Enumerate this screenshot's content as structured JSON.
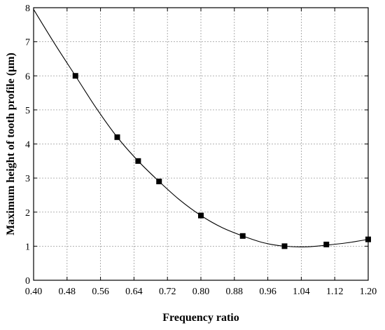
{
  "chart_data": {
    "type": "line",
    "xlabel": "Frequency ratio",
    "ylabel": "Maximum height of tooth profile (μm)",
    "xlim": [
      0.4,
      1.2
    ],
    "ylim": [
      0,
      8
    ],
    "xticks": [
      "0.40",
      "0.48",
      "0.56",
      "0.64",
      "0.72",
      "0.80",
      "0.88",
      "0.96",
      "1.04",
      "1.12",
      "1.20"
    ],
    "yticks": [
      "0",
      "1",
      "2",
      "3",
      "4",
      "5",
      "6",
      "7",
      "8"
    ],
    "grid": true,
    "series": [
      {
        "style": "markers",
        "marker": "square",
        "color": "#000000",
        "x": [
          0.5,
          0.6,
          0.65,
          0.7,
          0.8,
          0.9,
          1.0,
          1.1,
          1.2
        ],
        "y": [
          6.0,
          4.2,
          3.5,
          2.9,
          1.9,
          1.3,
          1.0,
          1.05,
          1.2
        ]
      },
      {
        "style": "fitted-curve",
        "color": "#000000",
        "x": [
          0.4,
          0.45,
          0.5,
          0.55,
          0.6,
          0.65,
          0.7,
          0.75,
          0.8,
          0.85,
          0.9,
          0.95,
          1.0,
          1.05,
          1.1,
          1.15,
          1.2
        ],
        "y": [
          7.95,
          6.95,
          6.0,
          5.05,
          4.2,
          3.5,
          2.9,
          2.35,
          1.9,
          1.55,
          1.3,
          1.1,
          1.0,
          0.98,
          1.03,
          1.1,
          1.2
        ]
      }
    ]
  }
}
